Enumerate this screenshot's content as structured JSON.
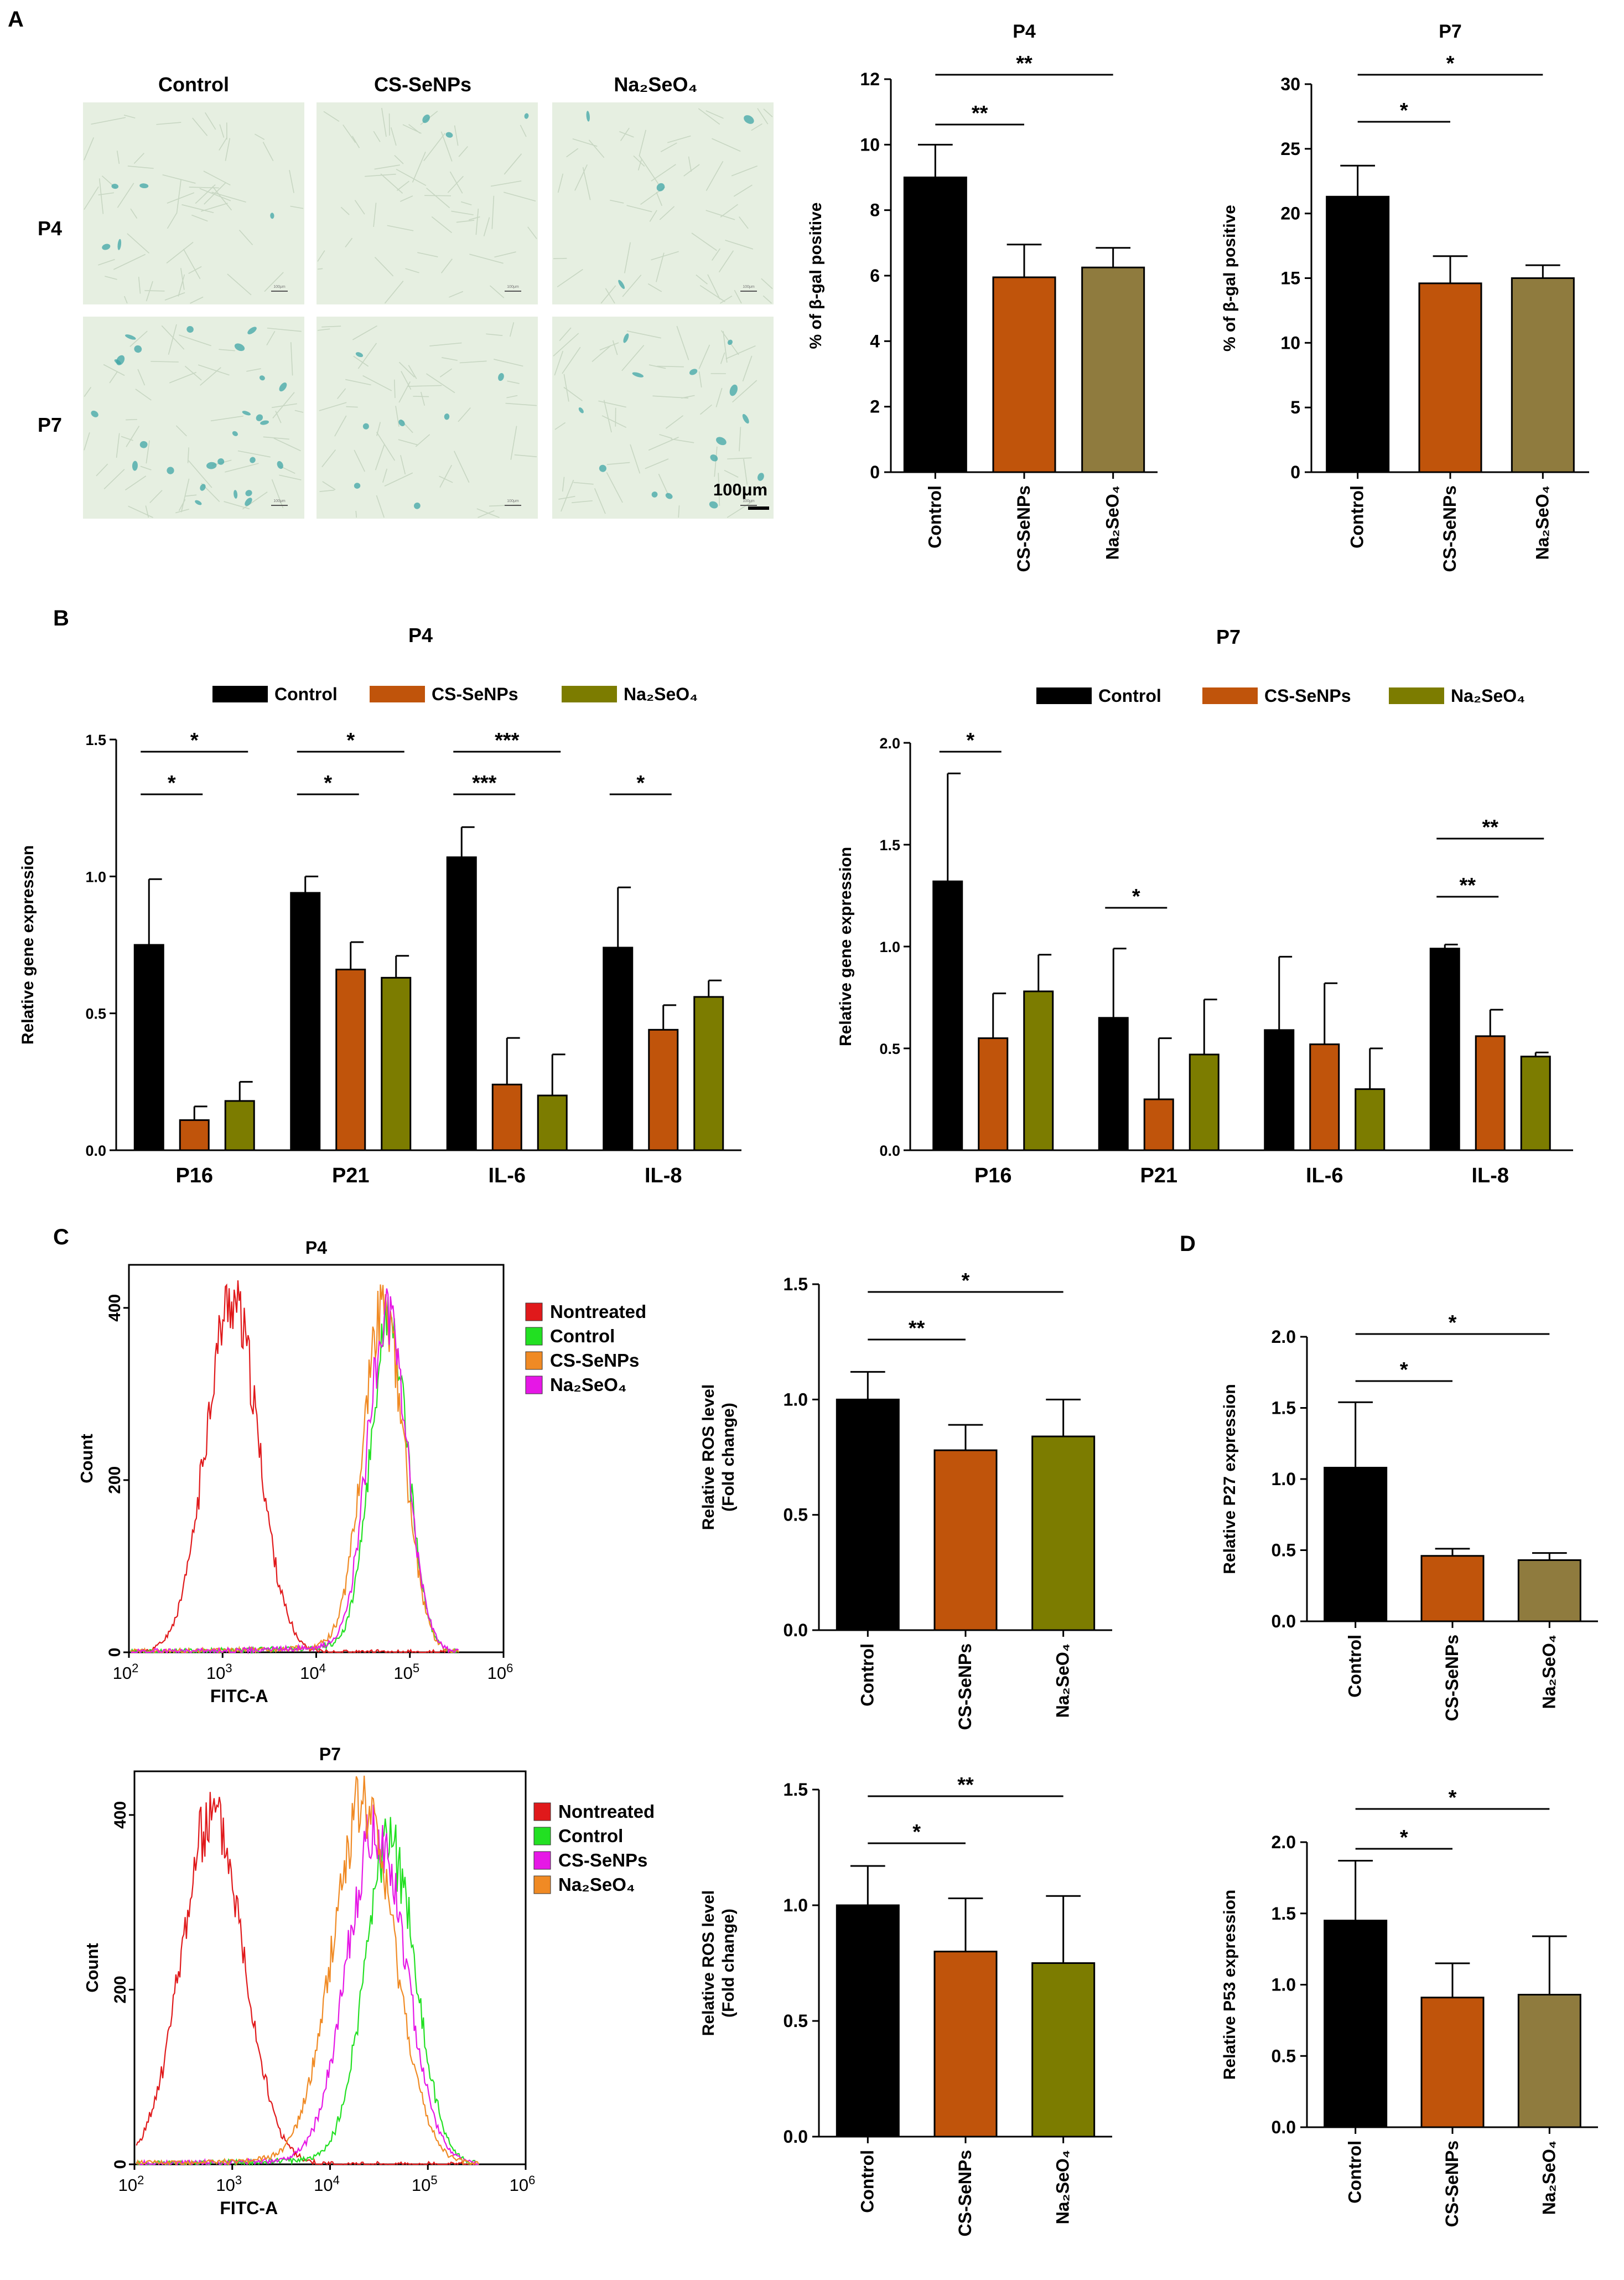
{
  "figure": {
    "panels": {
      "A": "A",
      "B": "B",
      "C": "C",
      "D": "D"
    },
    "micrographs": {
      "cols": [
        "Control",
        "CS-SeNPs",
        "Na₂SeO₄"
      ],
      "rows": [
        "P4",
        "P7"
      ],
      "scalebar": "100μm",
      "tiny_scale": "100μm",
      "blue_cells": {
        "P4": [
          5,
          3,
          4
        ],
        "P7": [
          26,
          7,
          14
        ]
      }
    }
  },
  "chart_data": [
    {
      "id": "a-p4",
      "type": "bar",
      "title": "P4",
      "ylabel": "% of β-gal positive",
      "categories": [
        "Control",
        "CS-SeNPs",
        "Na₂SeO₄"
      ],
      "values": [
        9.0,
        5.95,
        6.25
      ],
      "errors": [
        1.0,
        1.0,
        0.6
      ],
      "ylim": [
        0,
        12
      ],
      "yticks": [
        "0",
        "2",
        "4",
        "6",
        "8",
        "10",
        "12"
      ],
      "colors": [
        "#000000",
        "#c0540b",
        "#8f7b3e"
      ],
      "sig": [
        {
          "from": 0,
          "to": 2,
          "label": "**"
        },
        {
          "from": 0,
          "to": 1,
          "label": "**"
        }
      ]
    },
    {
      "id": "a-p7",
      "type": "bar",
      "title": "P7",
      "ylabel": "% of β-gal positive",
      "categories": [
        "Control",
        "CS-SeNPs",
        "Na₂SeO₄"
      ],
      "values": [
        21.3,
        14.6,
        15.0
      ],
      "errors": [
        2.4,
        2.1,
        1.0
      ],
      "ylim": [
        0,
        30
      ],
      "yticks": [
        "0",
        "5",
        "10",
        "15",
        "20",
        "25",
        "30"
      ],
      "colors": [
        "#000000",
        "#c0540b",
        "#8f7b3e"
      ],
      "sig": [
        {
          "from": 0,
          "to": 2,
          "label": "*"
        },
        {
          "from": 0,
          "to": 1,
          "label": "*"
        }
      ]
    },
    {
      "id": "b-p4",
      "type": "grouped-bar",
      "title": "P4",
      "ylabel": "Relative gene expression",
      "categories": [
        "P16",
        "P21",
        "IL-6",
        "IL-8"
      ],
      "series": [
        {
          "name": "Control",
          "values": [
            0.75,
            0.94,
            1.07,
            0.74
          ],
          "errors": [
            0.24,
            0.06,
            0.11,
            0.22
          ],
          "color": "#000000"
        },
        {
          "name": "CS-SeNPs",
          "values": [
            0.11,
            0.66,
            0.24,
            0.44
          ],
          "errors": [
            0.05,
            0.1,
            0.17,
            0.09
          ],
          "color": "#c0540b"
        },
        {
          "name": "Na₂SeO₄",
          "values": [
            0.18,
            0.63,
            0.2,
            0.56
          ],
          "errors": [
            0.07,
            0.08,
            0.15,
            0.06
          ],
          "color": "#7c7c00"
        }
      ],
      "ylim": [
        0,
        1.5
      ],
      "yticks": [
        "0.0",
        "0.5",
        "1.0",
        "1.5"
      ],
      "sig": [
        {
          "g": 0,
          "from": 0,
          "to": 2,
          "label": "*"
        },
        {
          "g": 0,
          "from": 0,
          "to": 1,
          "label": "*"
        },
        {
          "g": 1,
          "from": 0,
          "to": 2,
          "label": "*"
        },
        {
          "g": 1,
          "from": 0,
          "to": 1,
          "label": "*"
        },
        {
          "g": 2,
          "from": 0,
          "to": 2,
          "label": "***"
        },
        {
          "g": 2,
          "from": 0,
          "to": 1,
          "label": "***"
        },
        {
          "g": 3,
          "from": 0,
          "to": 1,
          "label": "*"
        }
      ]
    },
    {
      "id": "b-p7",
      "type": "grouped-bar",
      "title": "P7",
      "ylabel": "Relative gene expression",
      "categories": [
        "P16",
        "P21",
        "IL-6",
        "IL-8"
      ],
      "series": [
        {
          "name": "Control",
          "values": [
            1.32,
            0.65,
            0.59,
            0.99
          ],
          "errors": [
            0.53,
            0.34,
            0.36,
            0.02
          ],
          "color": "#000000"
        },
        {
          "name": "CS-SeNPs",
          "values": [
            0.55,
            0.25,
            0.52,
            0.56
          ],
          "errors": [
            0.22,
            0.3,
            0.3,
            0.13
          ],
          "color": "#c0540b"
        },
        {
          "name": "Na₂SeO₄",
          "values": [
            0.78,
            0.47,
            0.3,
            0.46
          ],
          "errors": [
            0.18,
            0.27,
            0.2,
            0.02
          ],
          "color": "#7c7c00"
        }
      ],
      "ylim": [
        0,
        2.0
      ],
      "yticks": [
        "0.0",
        "0.5",
        "1.0",
        "1.5",
        "2.0"
      ],
      "sig": [
        {
          "g": 0,
          "from": 0,
          "to": 1,
          "label": "*"
        },
        {
          "g": 1,
          "from": 0,
          "to": 1,
          "label": "*"
        },
        {
          "g": 3,
          "from": 0,
          "to": 2,
          "label": "**"
        },
        {
          "g": 3,
          "from": 0,
          "to": 1,
          "label": "**"
        }
      ]
    },
    {
      "id": "c-flow-p4",
      "type": "histogram",
      "title": "P4",
      "xlabel": "FITC-A",
      "ylabel": "Count",
      "xticks": [
        "10^2",
        "10^3",
        "10^4",
        "10^5",
        "10^6"
      ],
      "xlog": [
        2,
        6
      ],
      "ylim": [
        0,
        450
      ],
      "yticks": [
        "0",
        "200",
        "400"
      ],
      "series": [
        {
          "name": "Nontreated",
          "color": "#e0191b",
          "peak_log": 3.1,
          "peak": 410,
          "width": 0.28
        },
        {
          "name": "Control",
          "color": "#22e022",
          "peak_log": 4.78,
          "peak": 375,
          "width": 0.2
        },
        {
          "name": "CS-SeNPs",
          "color": "#f08a24",
          "peak_log": 4.72,
          "peak": 392,
          "width": 0.22
        },
        {
          "name": "Na₂SeO₄",
          "color": "#e617e6",
          "peak_log": 4.76,
          "peak": 385,
          "width": 0.21
        }
      ]
    },
    {
      "id": "c-flow-p7",
      "type": "histogram",
      "title": "P7",
      "xlabel": "FITC-A",
      "ylabel": "Count",
      "xticks": [
        "10^2",
        "10^3",
        "10^4",
        "10^5",
        "10^6"
      ],
      "xlog": [
        2,
        6
      ],
      "ylim": [
        0,
        450
      ],
      "yticks": [
        "0",
        "200",
        "400"
      ],
      "series": [
        {
          "name": "Nontreated",
          "color": "#e0191b",
          "peak_log": 2.8,
          "peak": 400,
          "width": 0.32
        },
        {
          "name": "Control",
          "color": "#22e022",
          "peak_log": 4.62,
          "peak": 360,
          "width": 0.26
        },
        {
          "name": "CS-SeNPs",
          "color": "#e617e6",
          "peak_log": 4.48,
          "peak": 375,
          "width": 0.3
        },
        {
          "name": "Na₂SeO₄",
          "color": "#f08a24",
          "peak_log": 4.35,
          "peak": 405,
          "width": 0.32
        }
      ]
    },
    {
      "id": "c-ros-p4",
      "type": "bar",
      "title": "",
      "ylabel": "Relative ROS level",
      "ylabel2": "(Fold change)",
      "categories": [
        "Control",
        "CS-SeNPs",
        "Na₂SeO₄"
      ],
      "values": [
        1.0,
        0.78,
        0.84
      ],
      "errors": [
        0.12,
        0.11,
        0.16
      ],
      "ylim": [
        0,
        1.5
      ],
      "yticks": [
        "0.0",
        "0.5",
        "1.0",
        "1.5"
      ],
      "colors": [
        "#000000",
        "#c0540b",
        "#7c7c00"
      ],
      "sig": [
        {
          "from": 0,
          "to": 2,
          "label": "*"
        },
        {
          "from": 0,
          "to": 1,
          "label": "**"
        }
      ]
    },
    {
      "id": "c-ros-p7",
      "type": "bar",
      "title": "",
      "ylabel": "Relative ROS level",
      "ylabel2": "(Fold change)",
      "categories": [
        "Control",
        "CS-SeNPs",
        "Na₂SeO₄"
      ],
      "values": [
        1.0,
        0.8,
        0.75
      ],
      "errors": [
        0.17,
        0.23,
        0.29
      ],
      "ylim": [
        0,
        1.5
      ],
      "yticks": [
        "0.0",
        "0.5",
        "1.0",
        "1.5"
      ],
      "colors": [
        "#000000",
        "#c0540b",
        "#7c7c00"
      ],
      "sig": [
        {
          "from": 0,
          "to": 2,
          "label": "**"
        },
        {
          "from": 0,
          "to": 1,
          "label": "*"
        }
      ]
    },
    {
      "id": "d-p27",
      "type": "bar",
      "title": "",
      "ylabel": "Relative P27 expression",
      "categories": [
        "Control",
        "CS-SeNPs",
        "Na₂SeO₄"
      ],
      "values": [
        1.08,
        0.46,
        0.43
      ],
      "errors": [
        0.46,
        0.05,
        0.05
      ],
      "ylim": [
        0,
        2.0
      ],
      "yticks": [
        "0.0",
        "0.5",
        "1.0",
        "1.5",
        "2.0"
      ],
      "colors": [
        "#000000",
        "#c0540b",
        "#8f7b3e"
      ],
      "sig": [
        {
          "from": 0,
          "to": 2,
          "label": "*"
        },
        {
          "from": 0,
          "to": 1,
          "label": "*"
        }
      ]
    },
    {
      "id": "d-p53",
      "type": "bar",
      "title": "",
      "ylabel": "Relative P53 expression",
      "categories": [
        "Control",
        "CS-SeNPs",
        "Na₂SeO₄"
      ],
      "values": [
        1.45,
        0.91,
        0.93
      ],
      "errors": [
        0.42,
        0.24,
        0.41
      ],
      "ylim": [
        0,
        2.0
      ],
      "yticks": [
        "0.0",
        "0.5",
        "1.0",
        "1.5",
        "2.0"
      ],
      "colors": [
        "#000000",
        "#c0540b",
        "#8f7b3e"
      ],
      "sig": [
        {
          "from": 0,
          "to": 2,
          "label": "*"
        },
        {
          "from": 0,
          "to": 1,
          "label": "*"
        }
      ]
    }
  ]
}
